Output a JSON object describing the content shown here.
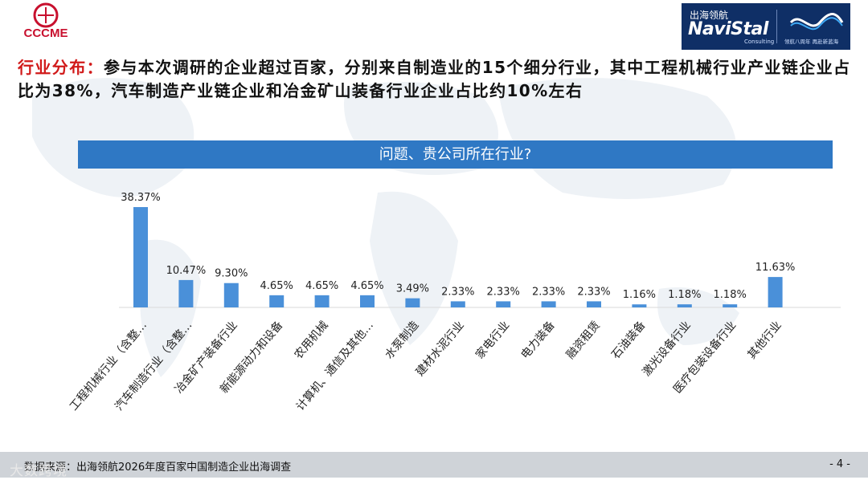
{
  "header": {
    "left_logo_text": "CCCME",
    "right_logo": {
      "cn": "出海领航",
      "en": "NaviStal",
      "sub": "Consulting",
      "slogan": "领航八周年 再赴新蓝海"
    }
  },
  "headline": {
    "key": "行业分布：",
    "text": "参与本次调研的企业超过百家，分别来自制造业的15个细分行业，其中工程机械行业产业链企业占比为38%，汽车制造产业链企业和冶金矿山装备行业企业占比约10%左右"
  },
  "chart_data": {
    "type": "bar",
    "title": "问题、贵公司所在行业?",
    "categories": [
      "工程机械行业（含整…",
      "汽车制造行业（含整…",
      "冶金矿产装备行业",
      "新能源动力和设备",
      "农用机械",
      "计算机、通信及其他…",
      "水泵制造",
      "建材水泥行业",
      "家电行业",
      "电力装备",
      "融资租赁",
      "石油装备",
      "激光设备行业",
      "医疗包装设备行业",
      "其他行业"
    ],
    "values": [
      38.37,
      10.47,
      9.3,
      4.65,
      4.65,
      4.65,
      3.49,
      2.33,
      2.33,
      2.33,
      2.33,
      1.16,
      1.18,
      1.18,
      11.63
    ],
    "value_labels": [
      "38.37%",
      "10.47%",
      "9.30%",
      "4.65%",
      "4.65%",
      "4.65%",
      "3.49%",
      "2.33%",
      "2.33%",
      "2.33%",
      "2.33%",
      "1.16%",
      "1.18%",
      "1.18%",
      "11.63%"
    ],
    "ylim": [
      0,
      40
    ],
    "grid": false,
    "bar_color": "#4a90d9"
  },
  "footer": {
    "source": "数据来源：出海领航2026年度百家中国制造企业出海调查",
    "page": "- 4 -"
  },
  "watermark": "大数跨境",
  "colors": {
    "accent": "#2f78c4",
    "headline_key": "#d11a1a"
  }
}
